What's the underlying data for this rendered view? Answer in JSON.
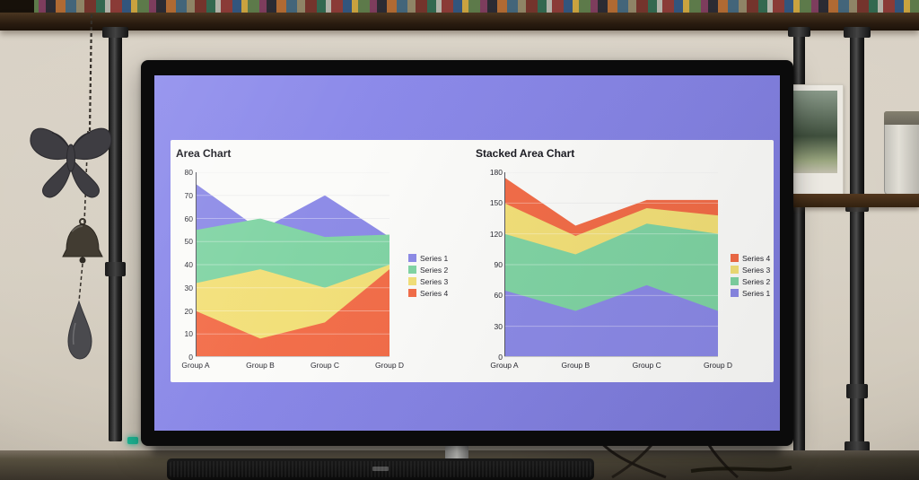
{
  "screen": {
    "background": "#8583e4",
    "panel_background": "#fbfbf9"
  },
  "chart_data": [
    {
      "type": "area",
      "stacked": false,
      "title": "Area Chart",
      "categories": [
        "Group A",
        "Group B",
        "Group C",
        "Group D"
      ],
      "series": [
        {
          "name": "Series 1",
          "color": "#8a88e6",
          "values": [
            75,
            55,
            70,
            52
          ]
        },
        {
          "name": "Series 2",
          "color": "#7ed3a2",
          "values": [
            55,
            60,
            52,
            53
          ]
        },
        {
          "name": "Series 3",
          "color": "#f2df76",
          "values": [
            32,
            38,
            30,
            40
          ]
        },
        {
          "name": "Series 4",
          "color": "#f26a45",
          "values": [
            20,
            8,
            15,
            38
          ]
        }
      ],
      "ylim": [
        0,
        80
      ],
      "yticks": [
        0,
        10,
        20,
        30,
        40,
        50,
        60,
        70,
        80
      ],
      "legend": [
        {
          "label": "Series 1",
          "color": "#8a88e6"
        },
        {
          "label": "Series 2",
          "color": "#7ed3a2"
        },
        {
          "label": "Series 3",
          "color": "#f2df76"
        },
        {
          "label": "Series 4",
          "color": "#f26a45"
        }
      ],
      "legend_position": "right",
      "grid": true
    },
    {
      "type": "area",
      "stacked": true,
      "title": "Stacked Area Chart",
      "categories": [
        "Group A",
        "Group B",
        "Group C",
        "Group D"
      ],
      "series": [
        {
          "name": "Series 1",
          "color": "#8a88e6",
          "values": [
            65,
            45,
            70,
            45
          ]
        },
        {
          "name": "Series 2",
          "color": "#7ed3a2",
          "values": [
            55,
            55,
            60,
            75
          ]
        },
        {
          "name": "Series 3",
          "color": "#f2df76",
          "values": [
            30,
            18,
            15,
            18
          ]
        },
        {
          "name": "Series 4",
          "color": "#f26a45",
          "values": [
            25,
            10,
            8,
            15
          ]
        }
      ],
      "ylim": [
        0,
        180
      ],
      "yticks": [
        0,
        30,
        60,
        90,
        120,
        150,
        180
      ],
      "legend": [
        {
          "label": "Series 4",
          "color": "#f26a45"
        },
        {
          "label": "Series 3",
          "color": "#f2df76"
        },
        {
          "label": "Series 2",
          "color": "#7ed3a2"
        },
        {
          "label": "Series 1",
          "color": "#8a88e6"
        }
      ],
      "legend_position": "right",
      "grid": true
    }
  ]
}
